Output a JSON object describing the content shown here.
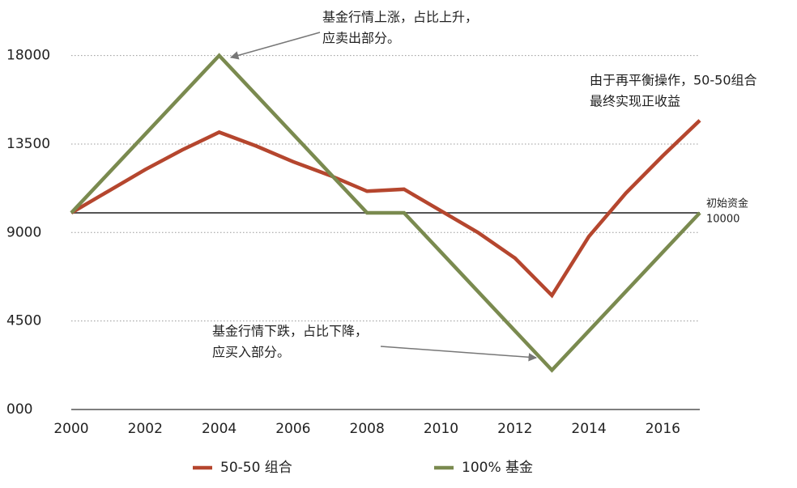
{
  "chart_data": {
    "type": "line",
    "x": [
      2000,
      2001,
      2002,
      2003,
      2004,
      2005,
      2006,
      2007,
      2008,
      2009,
      2010,
      2011,
      2012,
      2013,
      2014,
      2015,
      2016,
      2017
    ],
    "series": [
      {
        "name": "50-50 组合",
        "color": "#b5462e",
        "values": [
          10000,
          11100,
          12200,
          13200,
          14100,
          13400,
          12600,
          11900,
          11100,
          11200,
          10100,
          9000,
          7700,
          5800,
          8800,
          11000,
          12900,
          14700
        ]
      },
      {
        "name": "100% 基金",
        "color": "#7a8a4f",
        "values": [
          10000,
          12000,
          14000,
          16000,
          18000,
          16000,
          14000,
          12000,
          10000,
          10000,
          8000,
          6000,
          4000,
          2000,
          4000,
          6000,
          8000,
          10000
        ]
      }
    ],
    "xlim": [
      2000,
      2017
    ],
    "xticks": [
      2000,
      2002,
      2004,
      2006,
      2008,
      2010,
      2012,
      2014,
      2016
    ],
    "ylim": [
      0,
      20000
    ],
    "yticks": [
      {
        "value": 0,
        "label": "000"
      },
      4500,
      9000,
      13500,
      18000
    ],
    "grid": true,
    "reference": {
      "value": 10000,
      "label": "初始资金",
      "color": "#555555"
    },
    "annotations": [
      {
        "lines": [
          "基金行情上涨，占比上升，",
          "应卖出部分。"
        ]
      },
      {
        "lines": [
          "由于再平衡操作，50-50组合",
          "最终实现正收益"
        ]
      },
      {
        "lines": [
          "基金行情下跌，占比下降，",
          "应买入部分。"
        ]
      }
    ]
  }
}
